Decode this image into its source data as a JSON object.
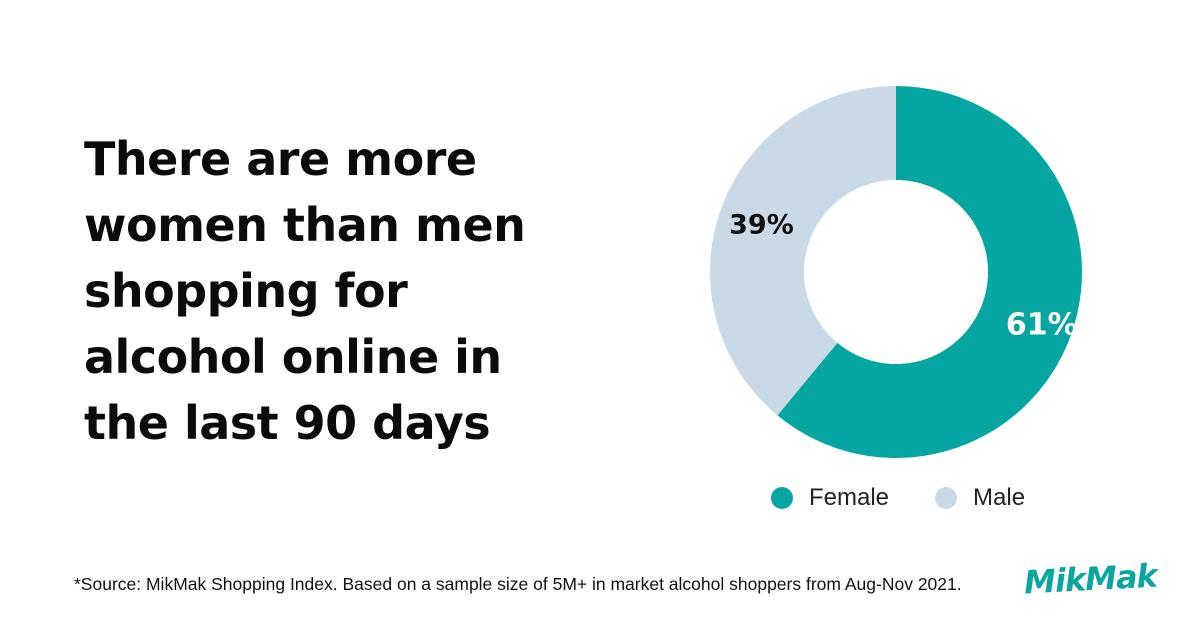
{
  "headline": {
    "lines": [
      "There are more",
      "women than men",
      "shopping for",
      "alcohol online in",
      "the last 90 days"
    ]
  },
  "chart_data": {
    "type": "pie",
    "donut": true,
    "categories": [
      "Female",
      "Male"
    ],
    "values": [
      61,
      39
    ],
    "labels": [
      "61%",
      "39%"
    ],
    "colors": [
      "#05a6a2",
      "#c9dae6"
    ],
    "legend": [
      "Female",
      "Male"
    ],
    "legend_position": "bottom"
  },
  "footnote": "*Source: MikMak Shopping Index. Based on a sample size of 5M+ in market alcohol shoppers from Aug-Nov 2021.",
  "logo_text": "MikMak"
}
